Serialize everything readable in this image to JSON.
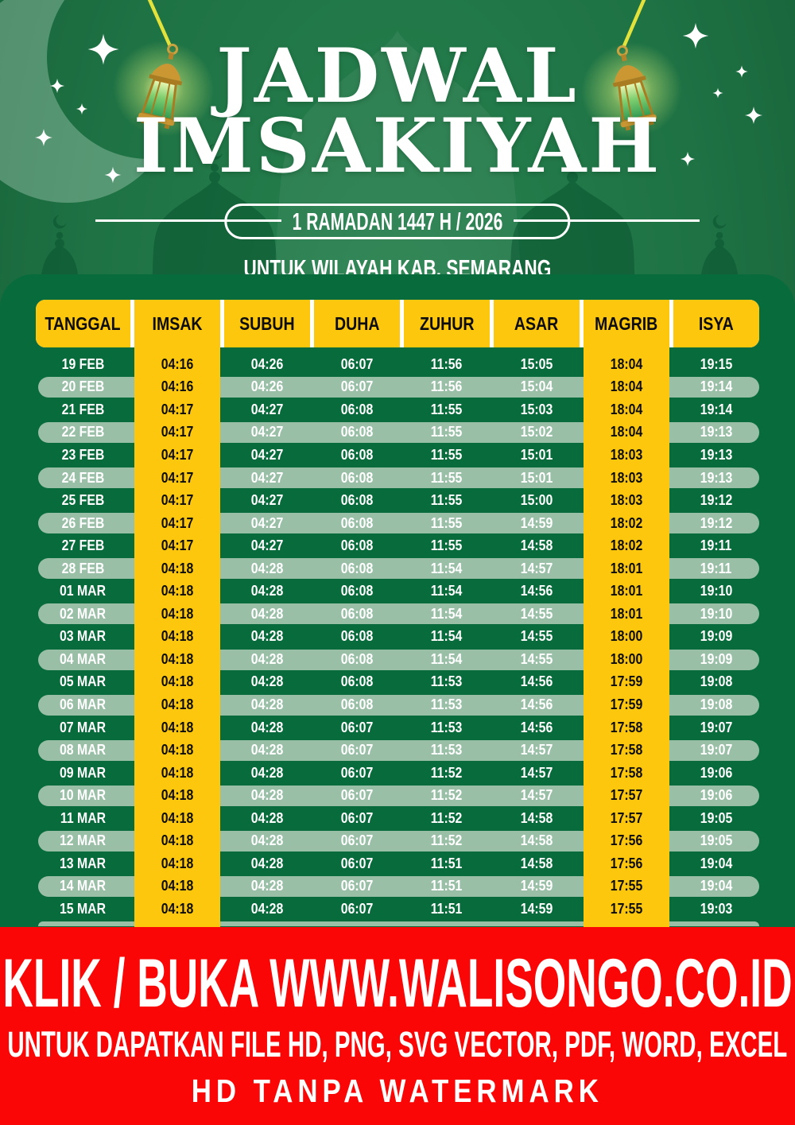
{
  "header": {
    "title_line1": "JADWAL",
    "title_line2": "IMSAKIYAH",
    "badge": "1 RAMADAN 1447 H / 2026",
    "subtitle": "UNTUK WILAYAH KAB. SEMARANG"
  },
  "decor_icons": {
    "moon": "crescent-moon-icon",
    "stars": "sparkle-star-icon",
    "left_lantern": "lantern-icon",
    "right_lantern": "lantern-icon",
    "mosque": "mosque-silhouette"
  },
  "colors": {
    "accent_yellow": "#fdc70d",
    "panel_green": "#086b3b",
    "row_sage": "#9abfa7",
    "footer_red": "#fa0606",
    "text_white": "#ffffff",
    "text_black": "#0d0d0d"
  },
  "table": {
    "columns": [
      "TANGGAL",
      "IMSAK",
      "SUBUH",
      "DUHA",
      "ZUHUR",
      "ASAR",
      "MAGRIB",
      "ISYA"
    ],
    "rows": [
      [
        "19 FEB",
        "04:16",
        "04:26",
        "06:07",
        "11:56",
        "15:05",
        "18:04",
        "19:15"
      ],
      [
        "20 FEB",
        "04:16",
        "04:26",
        "06:07",
        "11:56",
        "15:04",
        "18:04",
        "19:14"
      ],
      [
        "21 FEB",
        "04:17",
        "04:27",
        "06:08",
        "11:55",
        "15:03",
        "18:04",
        "19:14"
      ],
      [
        "22 FEB",
        "04:17",
        "04:27",
        "06:08",
        "11:55",
        "15:02",
        "18:04",
        "19:13"
      ],
      [
        "23 FEB",
        "04:17",
        "04:27",
        "06:08",
        "11:55",
        "15:01",
        "18:03",
        "19:13"
      ],
      [
        "24 FEB",
        "04:17",
        "04:27",
        "06:08",
        "11:55",
        "15:01",
        "18:03",
        "19:13"
      ],
      [
        "25 FEB",
        "04:17",
        "04:27",
        "06:08",
        "11:55",
        "15:00",
        "18:03",
        "19:12"
      ],
      [
        "26 FEB",
        "04:17",
        "04:27",
        "06:08",
        "11:55",
        "14:59",
        "18:02",
        "19:12"
      ],
      [
        "27 FEB",
        "04:17",
        "04:27",
        "06:08",
        "11:55",
        "14:58",
        "18:02",
        "19:11"
      ],
      [
        "28 FEB",
        "04:18",
        "04:28",
        "06:08",
        "11:54",
        "14:57",
        "18:01",
        "19:11"
      ],
      [
        "01 MAR",
        "04:18",
        "04:28",
        "06:08",
        "11:54",
        "14:56",
        "18:01",
        "19:10"
      ],
      [
        "02 MAR",
        "04:18",
        "04:28",
        "06:08",
        "11:54",
        "14:55",
        "18:01",
        "19:10"
      ],
      [
        "03 MAR",
        "04:18",
        "04:28",
        "06:08",
        "11:54",
        "14:55",
        "18:00",
        "19:09"
      ],
      [
        "04 MAR",
        "04:18",
        "04:28",
        "06:08",
        "11:54",
        "14:55",
        "18:00",
        "19:09"
      ],
      [
        "05 MAR",
        "04:18",
        "04:28",
        "06:08",
        "11:53",
        "14:56",
        "17:59",
        "19:08"
      ],
      [
        "06 MAR",
        "04:18",
        "04:28",
        "06:08",
        "11:53",
        "14:56",
        "17:59",
        "19:08"
      ],
      [
        "07 MAR",
        "04:18",
        "04:28",
        "06:07",
        "11:53",
        "14:56",
        "17:58",
        "19:07"
      ],
      [
        "08 MAR",
        "04:18",
        "04:28",
        "06:07",
        "11:53",
        "14:57",
        "17:58",
        "19:07"
      ],
      [
        "09 MAR",
        "04:18",
        "04:28",
        "06:07",
        "11:52",
        "14:57",
        "17:58",
        "19:06"
      ],
      [
        "10 MAR",
        "04:18",
        "04:28",
        "06:07",
        "11:52",
        "14:57",
        "17:57",
        "19:06"
      ],
      [
        "11 MAR",
        "04:18",
        "04:28",
        "06:07",
        "11:52",
        "14:58",
        "17:57",
        "19:05"
      ],
      [
        "12 MAR",
        "04:18",
        "04:28",
        "06:07",
        "11:52",
        "14:58",
        "17:56",
        "19:05"
      ],
      [
        "13 MAR",
        "04:18",
        "04:28",
        "06:07",
        "11:51",
        "14:58",
        "17:56",
        "19:04"
      ],
      [
        "14 MAR",
        "04:18",
        "04:28",
        "06:07",
        "11:51",
        "14:59",
        "17:55",
        "19:04"
      ],
      [
        "15 MAR",
        "04:18",
        "04:28",
        "06:07",
        "11:51",
        "14:59",
        "17:55",
        "19:03"
      ]
    ]
  },
  "footer": {
    "line1": "KLIK / BUKA WWW.WALISONGO.CO.ID",
    "line2": "UNTUK DAPATKAN FILE HD, PNG, SVG VECTOR, PDF, WORD, EXCEL",
    "line3": "HD TANPA WATERMARK"
  }
}
